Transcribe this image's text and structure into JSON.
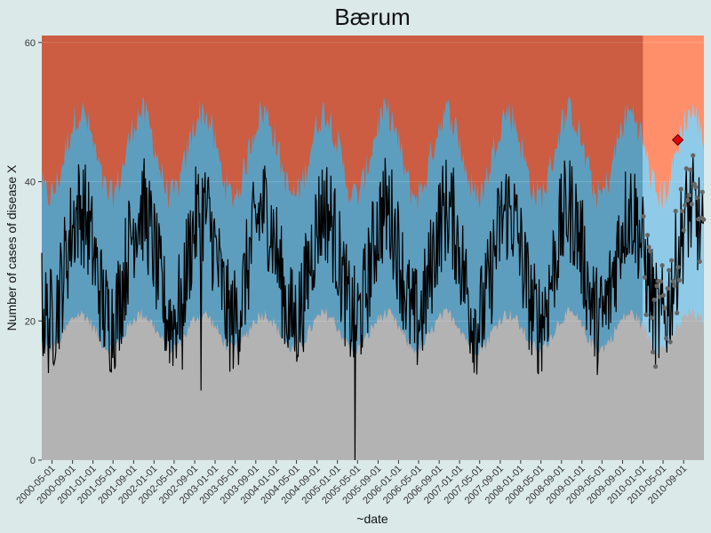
{
  "chart_data": {
    "type": "area",
    "title": "Bærum",
    "xlabel": "~date",
    "ylabel": "Number of cases of disease X",
    "ylim": [
      0,
      61
    ],
    "y_ticks": [
      0,
      20,
      40,
      60
    ],
    "x_ticks": [
      "2000-05-01",
      "2000-09-01",
      "2001-01-01",
      "2001-05-01",
      "2001-09-01",
      "2002-01-01",
      "2002-05-01",
      "2002-09-01",
      "2003-01-01",
      "2003-05-01",
      "2003-09-01",
      "2004-01-01",
      "2004-05-01",
      "2004-09-01",
      "2005-01-01",
      "2005-05-01",
      "2005-09-01",
      "2006-01-01",
      "2006-05-01",
      "2006-09-01",
      "2007-01-01",
      "2007-05-01",
      "2007-09-01",
      "2008-01-01",
      "2008-05-01",
      "2008-09-01",
      "2009-01-01",
      "2009-05-01",
      "2009-09-01",
      "2010-01-01",
      "2010-05-01",
      "2010-09-01"
    ],
    "x_range": [
      "2000-03-01",
      "2010-12-31"
    ],
    "split_date": "2010-01-01",
    "bands": {
      "normal_upper": 18.5,
      "normal_seasonal_amplitude": 2.5,
      "high_upper": 44,
      "high_seasonal_amplitude": 6,
      "band_peak_month": "October"
    },
    "observed_summary": {
      "baseline_mean": 28,
      "seasonal_amplitude": 8,
      "peak_month": "October",
      "min_point": {
        "date": "2005-04-15",
        "value": 0
      },
      "other_dips": [
        {
          "date": "2002-06-20",
          "value": 13
        },
        {
          "date": "2002-10-10",
          "value": 10
        }
      ]
    },
    "highlight": {
      "date": "2010-07-28",
      "value": 46
    },
    "grid": true,
    "colors": {
      "panel_background": "#b3b3b3",
      "normal_band": "#b3b3b3",
      "medium_band": "#5d9ebf",
      "high_band": "#cc5c42",
      "normal_band_recent": "#b3b3b3",
      "medium_band_recent": "#8fcbe8",
      "high_band_recent": "#ff8f6b",
      "observed_line": "#000000",
      "recent_points": "#666666",
      "highlight_marker": "#e3000f",
      "page_background": "#dbe9e9"
    }
  }
}
